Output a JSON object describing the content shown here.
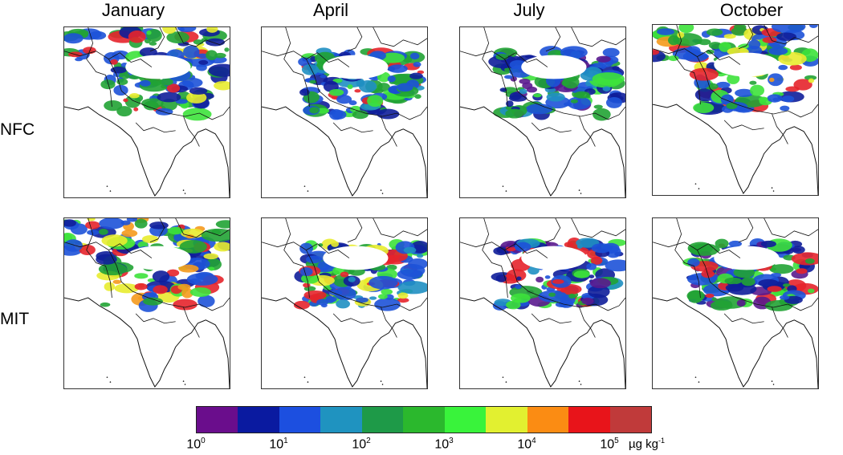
{
  "columns": [
    "January",
    "April",
    "July",
    "October"
  ],
  "rows": [
    "NFC",
    "MIT"
  ],
  "colorbar": {
    "colors": [
      "#6a0d8c",
      "#0a1aa0",
      "#1c4fe0",
      "#1f93c0",
      "#1e9a48",
      "#2bb82d",
      "#39f33b",
      "#e2f030",
      "#fb8c13",
      "#e8141a",
      "#c03a3a"
    ],
    "ticks": [
      {
        "base": "10",
        "exp": "0"
      },
      {
        "base": "10",
        "exp": "1"
      },
      {
        "base": "10",
        "exp": "2"
      },
      {
        "base": "10",
        "exp": "3"
      },
      {
        "base": "10",
        "exp": "4"
      },
      {
        "base": "10",
        "exp": "5"
      }
    ],
    "unit_base": "µg kg",
    "unit_exp": "-1"
  },
  "field_colors": {
    "red": "#e5242b",
    "orange": "#f59a1d",
    "yellow": "#e8ec2f",
    "lime": "#3de23b",
    "green": "#21a334",
    "teal": "#1f8fc2",
    "blue": "#1d52d8",
    "navy": "#101e9a",
    "purple": "#5a1a8e"
  }
}
